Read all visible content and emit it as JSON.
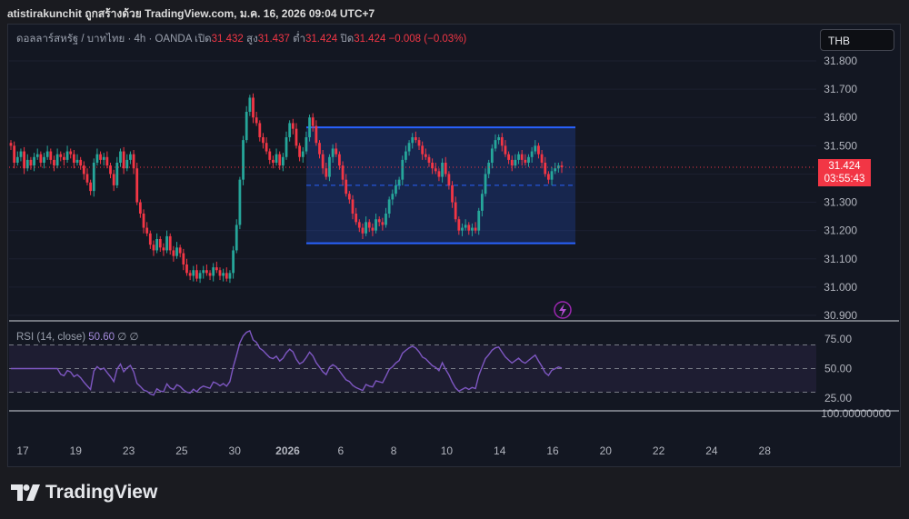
{
  "header": {
    "text": "atistirakunchit ถูกสร้างด้วย TradingView.com, ม.ค. 16, 2026 09:04 UTC+7"
  },
  "legend": {
    "symbol": "ดอลลาร์สหรัฐ / บาทไทย · 4h · OANDA",
    "open_label": "เปิด",
    "open": "31.432",
    "high_label": "สูง",
    "high": "31.437",
    "low_label": "ต่ำ",
    "low": "31.424",
    "close_label": "ปิด",
    "close": "31.424",
    "change": "−0.008 (−0.03%)"
  },
  "currency_button": "THB",
  "price_tag": {
    "price": "31.424",
    "countdown": "03:55:43"
  },
  "rsi_legend": {
    "label": "RSI (14, close)",
    "value": "50.60",
    "extra1": "∅",
    "extra2": "∅"
  },
  "rsi_axis_extra": "100.00000000",
  "brand": "TradingView",
  "colors": {
    "up": "#26a69a",
    "down": "#f23645",
    "rect": "#2962ff",
    "rsi": "#7e57c2"
  },
  "icons": [
    "lightning-icon",
    "tradingview-logo-icon"
  ],
  "chart_data": [
    {
      "type": "candlestick",
      "ylim": [
        30.88,
        31.86
      ],
      "y_ticks": [
        "31.800",
        "31.700",
        "31.600",
        "31.500",
        "31.400",
        "31.300",
        "31.200",
        "31.100",
        "31.000",
        "30.900"
      ],
      "x_ticks": [
        "17",
        "19",
        "23",
        "25",
        "30",
        "2026",
        "6",
        "8",
        "10",
        "14",
        "16",
        "20",
        "22",
        "24",
        "28"
      ],
      "last_price": 31.424,
      "rectangle": {
        "top": 31.565,
        "bottom": 31.155,
        "mid": 31.36
      },
      "close_series": [
        31.5,
        31.44,
        31.46,
        31.48,
        31.42,
        31.45,
        31.43,
        31.46,
        31.47,
        31.44,
        31.46,
        31.48,
        31.45,
        31.43,
        31.47,
        31.46,
        31.45,
        31.48,
        31.47,
        31.44,
        31.45,
        31.43,
        31.4,
        31.37,
        31.34,
        31.44,
        31.47,
        31.45,
        31.46,
        31.43,
        31.4,
        31.36,
        31.44,
        31.48,
        31.42,
        31.45,
        31.47,
        31.42,
        31.3,
        31.26,
        31.21,
        31.19,
        31.15,
        31.13,
        31.17,
        31.14,
        31.13,
        31.18,
        31.13,
        31.11,
        31.14,
        31.12,
        31.08,
        31.05,
        31.04,
        31.06,
        31.03,
        31.05,
        31.06,
        31.05,
        31.04,
        31.07,
        31.06,
        31.04,
        31.05,
        31.03,
        31.05,
        31.13,
        31.22,
        31.38,
        31.52,
        31.62,
        31.67,
        31.6,
        31.58,
        31.53,
        31.51,
        31.48,
        31.45,
        31.44,
        31.47,
        31.43,
        31.46,
        31.53,
        31.58,
        31.56,
        31.5,
        31.46,
        31.48,
        31.53,
        31.6,
        31.57,
        31.51,
        31.47,
        31.42,
        31.39,
        31.46,
        31.49,
        31.47,
        31.43,
        31.38,
        31.33,
        31.31,
        31.26,
        31.23,
        31.21,
        31.19,
        31.23,
        31.21,
        31.2,
        31.24,
        31.23,
        31.22,
        31.26,
        31.31,
        31.33,
        31.36,
        31.38,
        31.45,
        31.48,
        31.51,
        31.53,
        31.52,
        31.5,
        31.47,
        31.46,
        31.44,
        31.42,
        31.41,
        31.39,
        31.44,
        31.4,
        31.36,
        31.3,
        31.24,
        31.2,
        31.21,
        31.22,
        31.2,
        31.21,
        31.2,
        31.27,
        31.33,
        31.4,
        31.44,
        31.49,
        31.52,
        31.53,
        31.5,
        31.47,
        31.45,
        31.43,
        31.45,
        31.47,
        31.45,
        31.44,
        31.46,
        31.48,
        31.5,
        31.47,
        31.44,
        31.4,
        31.38,
        31.41,
        31.42,
        31.43,
        31.424
      ]
    },
    {
      "type": "line",
      "title": "RSI (14, close)",
      "ylim": [
        15,
        85
      ],
      "y_ticks": [
        "75.00",
        "50.00",
        "25.00"
      ],
      "bands": [
        30,
        50,
        70
      ],
      "last_value": 50.6
    }
  ]
}
